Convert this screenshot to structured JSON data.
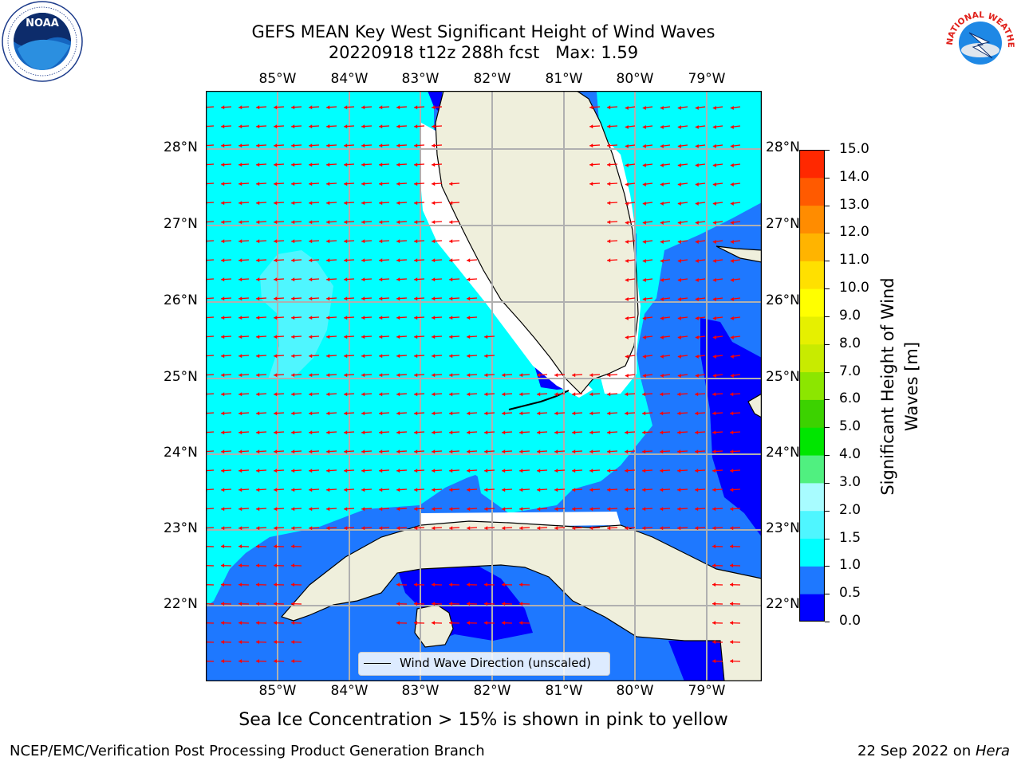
{
  "title": {
    "line1": "GEFS MEAN Key West Significant Height of Wind Waves",
    "line2": "20220918 t12z 288h fcst   Max: 1.59"
  },
  "map": {
    "lon_labels": [
      "85°W",
      "84°W",
      "83°W",
      "82°W",
      "81°W",
      "80°W",
      "79°W"
    ],
    "lat_labels": [
      "28°N",
      "27°N",
      "26°N",
      "25°N",
      "24°N",
      "23°N",
      "22°N"
    ],
    "legend_label": "Wind Wave Direction (unscaled)",
    "arrow_color": "#ff0000",
    "land_color": "#efefdc",
    "gridline_color": "#b0b0b0"
  },
  "colorbar": {
    "title": "Significant Height of Wind Waves [m]",
    "ticks": [
      "15.0",
      "14.0",
      "13.0",
      "12.0",
      "11.0",
      "10.0",
      "9.0",
      "8.0",
      "7.0",
      "6.0",
      "5.0",
      "4.0",
      "3.0",
      "2.0",
      "1.5",
      "1.0",
      "0.5",
      "0.0"
    ],
    "colors": [
      "#0000ff",
      "#1e78ff",
      "#00ffff",
      "#4ff6ff",
      "#a8fcff",
      "#50f080",
      "#00e600",
      "#3cd200",
      "#8ce600",
      "#c8eb00",
      "#e6f000",
      "#ffff00",
      "#ffe000",
      "#ffb400",
      "#ff8c00",
      "#ff5a00",
      "#ff2800",
      "#ff0000"
    ]
  },
  "caption": "Sea Ice Concentration > 15% is shown in pink to yellow",
  "footer": {
    "left": "NCEP/EMC/Verification Post Processing Product Generation Branch",
    "right_prefix": "22 Sep 2022 on ",
    "right_host": "Hera"
  },
  "logos": {
    "noaa_text": "NOAA",
    "nws_text": "NATIONAL WEATHER SERVICE"
  }
}
